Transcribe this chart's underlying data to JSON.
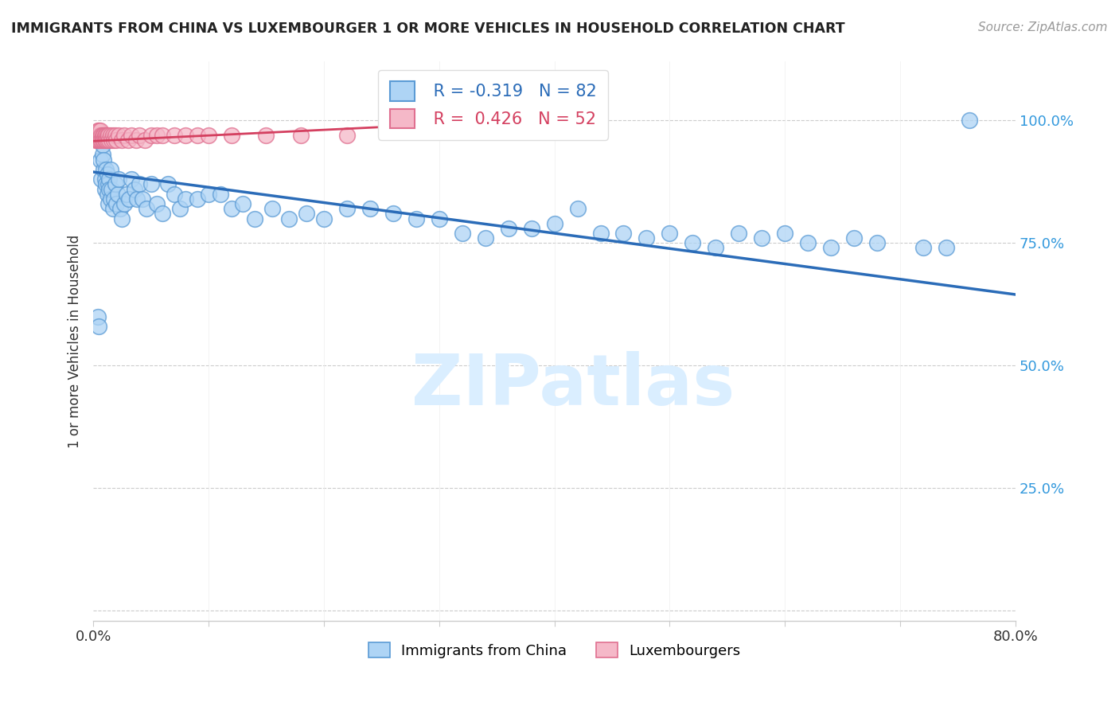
{
  "title": "IMMIGRANTS FROM CHINA VS LUXEMBOURGER 1 OR MORE VEHICLES IN HOUSEHOLD CORRELATION CHART",
  "source": "Source: ZipAtlas.com",
  "ylabel": "1 or more Vehicles in Household",
  "xlim": [
    0.0,
    0.8
  ],
  "ylim": [
    -0.02,
    1.12
  ],
  "xticks": [
    0.0,
    0.1,
    0.2,
    0.3,
    0.4,
    0.5,
    0.6,
    0.7,
    0.8
  ],
  "xticklabels": [
    "0.0%",
    "",
    "",
    "",
    "",
    "",
    "",
    "",
    "80.0%"
  ],
  "ytick_positions": [
    0.0,
    0.25,
    0.5,
    0.75,
    1.0
  ],
  "ytick_labels": [
    "",
    "25.0%",
    "50.0%",
    "75.0%",
    "100.0%"
  ],
  "blue_R": -0.319,
  "blue_N": 82,
  "pink_R": 0.426,
  "pink_N": 52,
  "blue_color": "#aed4f5",
  "blue_edge": "#5b9bd5",
  "pink_color": "#f5b8c8",
  "pink_edge": "#e07090",
  "blue_line_color": "#2b6cb8",
  "pink_line_color": "#d44060",
  "watermark_color": "#daeeff",
  "legend_label_blue": "Immigrants from China",
  "legend_label_pink": "Luxembourgers",
  "blue_x": [
    0.004,
    0.005,
    0.006,
    0.007,
    0.008,
    0.008,
    0.009,
    0.009,
    0.01,
    0.01,
    0.011,
    0.011,
    0.012,
    0.012,
    0.013,
    0.013,
    0.014,
    0.014,
    0.015,
    0.015,
    0.016,
    0.017,
    0.018,
    0.019,
    0.02,
    0.021,
    0.022,
    0.023,
    0.025,
    0.027,
    0.029,
    0.031,
    0.033,
    0.036,
    0.038,
    0.04,
    0.043,
    0.046,
    0.05,
    0.055,
    0.06,
    0.065,
    0.07,
    0.075,
    0.08,
    0.09,
    0.1,
    0.11,
    0.12,
    0.13,
    0.14,
    0.155,
    0.17,
    0.185,
    0.2,
    0.22,
    0.24,
    0.26,
    0.28,
    0.3,
    0.32,
    0.34,
    0.36,
    0.38,
    0.4,
    0.42,
    0.44,
    0.46,
    0.48,
    0.5,
    0.52,
    0.54,
    0.56,
    0.58,
    0.6,
    0.62,
    0.64,
    0.66,
    0.68,
    0.72,
    0.74,
    0.76
  ],
  "blue_y": [
    0.6,
    0.58,
    0.92,
    0.88,
    0.93,
    0.95,
    0.9,
    0.92,
    0.88,
    0.86,
    0.9,
    0.87,
    0.85,
    0.89,
    0.87,
    0.83,
    0.88,
    0.86,
    0.84,
    0.9,
    0.86,
    0.82,
    0.84,
    0.87,
    0.83,
    0.85,
    0.88,
    0.82,
    0.8,
    0.83,
    0.85,
    0.84,
    0.88,
    0.86,
    0.84,
    0.87,
    0.84,
    0.82,
    0.87,
    0.83,
    0.81,
    0.87,
    0.85,
    0.82,
    0.84,
    0.84,
    0.85,
    0.85,
    0.82,
    0.83,
    0.8,
    0.82,
    0.8,
    0.81,
    0.8,
    0.82,
    0.82,
    0.81,
    0.8,
    0.8,
    0.77,
    0.76,
    0.78,
    0.78,
    0.79,
    0.82,
    0.77,
    0.77,
    0.76,
    0.77,
    0.75,
    0.74,
    0.77,
    0.76,
    0.77,
    0.75,
    0.74,
    0.76,
    0.75,
    0.74,
    0.74,
    1.0
  ],
  "pink_x": [
    0.002,
    0.003,
    0.003,
    0.004,
    0.004,
    0.004,
    0.005,
    0.005,
    0.005,
    0.006,
    0.006,
    0.006,
    0.007,
    0.007,
    0.008,
    0.008,
    0.009,
    0.009,
    0.01,
    0.01,
    0.011,
    0.011,
    0.012,
    0.012,
    0.013,
    0.014,
    0.015,
    0.016,
    0.017,
    0.018,
    0.019,
    0.02,
    0.022,
    0.025,
    0.027,
    0.03,
    0.033,
    0.037,
    0.04,
    0.045,
    0.05,
    0.055,
    0.06,
    0.07,
    0.08,
    0.09,
    0.1,
    0.12,
    0.15,
    0.18,
    0.22,
    0.31
  ],
  "pink_y": [
    0.96,
    0.97,
    0.96,
    0.97,
    0.96,
    0.98,
    0.97,
    0.96,
    0.98,
    0.97,
    0.96,
    0.98,
    0.97,
    0.96,
    0.97,
    0.96,
    0.97,
    0.96,
    0.97,
    0.96,
    0.97,
    0.96,
    0.97,
    0.96,
    0.97,
    0.96,
    0.97,
    0.96,
    0.97,
    0.96,
    0.97,
    0.96,
    0.97,
    0.96,
    0.97,
    0.96,
    0.97,
    0.96,
    0.97,
    0.96,
    0.97,
    0.97,
    0.97,
    0.97,
    0.97,
    0.97,
    0.97,
    0.97,
    0.97,
    0.97,
    0.97,
    0.99
  ],
  "blue_trend_x": [
    0.0,
    0.8
  ],
  "blue_trend_y": [
    0.895,
    0.645
  ],
  "pink_trend_x": [
    0.0,
    0.35
  ],
  "pink_trend_y": [
    0.958,
    0.998
  ]
}
